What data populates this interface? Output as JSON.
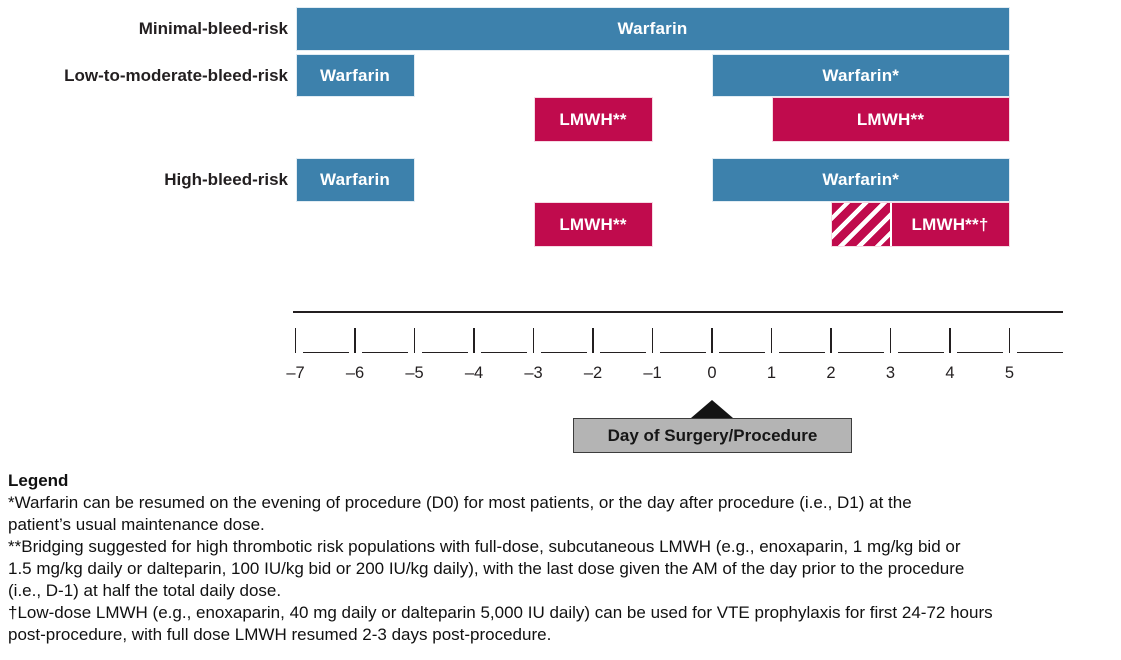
{
  "chart_data": {
    "type": "timeline",
    "unit": "days relative to procedure",
    "x_ticks": [
      -7,
      -6,
      -5,
      -4,
      -3,
      -2,
      -1,
      0,
      1,
      2,
      3,
      4,
      5
    ],
    "x_tick_labels": [
      "–7",
      "–6",
      "–5",
      "–4",
      "–3",
      "–2",
      "–1",
      "0",
      "1",
      "2",
      "3",
      "4",
      "5"
    ],
    "x_range": [
      -7,
      6
    ],
    "surgery_marker": {
      "day": 0,
      "label": "Day of Surgery/Procedure"
    },
    "colors": {
      "warfarin": "#3d81ac",
      "lmwh": "#c00b4d",
      "marker_box": "#b4b4b4",
      "axis": "#231f20"
    },
    "rows": [
      {
        "risk_group": "Minimal-bleed-risk",
        "bars": [
          {
            "label": "Warfarin",
            "drug": "warfarin",
            "start_day": -7,
            "end_day": 5,
            "lane": "top"
          }
        ]
      },
      {
        "risk_group": "Low-to-moderate-bleed-risk",
        "bars": [
          {
            "label": "Warfarin",
            "drug": "warfarin",
            "start_day": -7,
            "end_day": -5,
            "lane": "top"
          },
          {
            "label": "LMWH**",
            "drug": "lmwh",
            "start_day": -3,
            "end_day": -1,
            "lane": "bottom"
          },
          {
            "label": "Warfarin*",
            "drug": "warfarin",
            "start_day": 0,
            "end_day": 5,
            "lane": "top"
          },
          {
            "label": "LMWH**",
            "drug": "lmwh",
            "start_day": 1,
            "end_day": 5,
            "lane": "bottom"
          }
        ]
      },
      {
        "risk_group": "High-bleed-risk",
        "bars": [
          {
            "label": "Warfarin",
            "drug": "warfarin",
            "start_day": -7,
            "end_day": -5,
            "lane": "top"
          },
          {
            "label": "LMWH**",
            "drug": "lmwh",
            "start_day": -3,
            "end_day": -1,
            "lane": "bottom"
          },
          {
            "label": "Warfarin*",
            "drug": "warfarin",
            "start_day": 0,
            "end_day": 5,
            "lane": "top"
          },
          {
            "label": "LMWH**†",
            "drug": "lmwh",
            "start_day": 2,
            "end_day": 5,
            "lane": "bottom",
            "hatched_start_day": 2,
            "hatched_end_day": 3
          }
        ]
      }
    ]
  },
  "legend": {
    "heading": "Legend",
    "footnotes": [
      "*Warfarin can be resumed on the evening of procedure (D0) for most patients, or the day after procedure (i.e., D1) at the\npatient’s usual maintenance dose.",
      "**Bridging suggested for high thrombotic risk populations with full-dose, subcutaneous LMWH (e.g., enoxaparin, 1 mg/kg bid or\n1.5 mg/kg daily or dalteparin, 100 IU/kg bid or 200 IU/kg daily), with the last dose given the AM of the day prior to the procedure\n(i.e., D-1) at half the total daily dose.",
      "†Low-dose LMWH (e.g., enoxaparin, 40 mg daily or dalteparin 5,000 IU daily) can be used for VTE prophylaxis for first 24-72 hours\npost-procedure, with full dose LMWH resumed 2-3 days post-procedure."
    ]
  }
}
